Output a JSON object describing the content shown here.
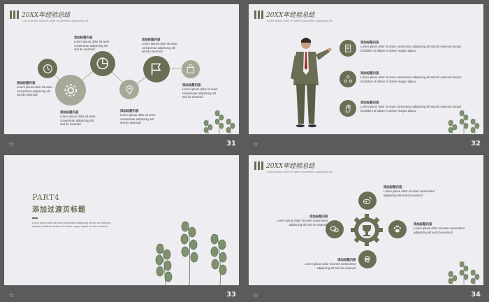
{
  "slides": [
    {
      "number": "31",
      "header": "20XX年经验总结",
      "header_sub": "Lorem ipsum dolor sit amet consectetur adipiscing elit",
      "nodes": [
        {
          "title": "添加标题内容",
          "lines": [
            "Lorem ipsum dolor sit amet",
            "consectetur adipiscing elit",
            "sed do eiusmod"
          ]
        },
        {
          "title": "添加标题内容",
          "lines": [
            "Lorem ipsum dolor sit amet",
            "consectetur adipiscing elit",
            "sed do eiusmod"
          ]
        },
        {
          "title": "添加标题内容",
          "lines": [
            "Lorem ipsum dolor sit amet",
            "consectetur adipiscing elit",
            "sed do eiusmod"
          ]
        },
        {
          "title": "添加标题内容",
          "lines": [
            "Lorem ipsum dolor sit amet",
            "consectetur adipiscing elit",
            "sed do eiusmod"
          ]
        },
        {
          "title": "添加标题内容",
          "lines": [
            "Lorem ipsum dolor sit amet",
            "consectetur adipiscing elit",
            "sed do eiusmod"
          ]
        },
        {
          "title": "添加标题内容",
          "lines": [
            "Lorem ipsum dolor sit amet",
            "consectetur adipiscing elit",
            "sed do eiusmod"
          ]
        }
      ],
      "icons": [
        "clock-icon",
        "gear-icon",
        "pie-chart-icon",
        "location-icon",
        "flag-icon",
        "bag-icon"
      ]
    },
    {
      "number": "32",
      "header": "20XX年经验总结",
      "header_sub": "Lorem ipsum dolor sit amet consectetur adipiscing elit",
      "items": [
        {
          "title": "添加标题内容",
          "lines": [
            "Lorem ipsum dolor sit amet consectetur adipiscing elit sed do eiusmod tempor",
            "incididunt ut labore et dolore magna aliqua"
          ]
        },
        {
          "title": "添加标题内容",
          "lines": [
            "Lorem ipsum dolor sit amet consectetur adipiscing elit sed do eiusmod tempor",
            "incididunt ut labore et dolore magna aliqua"
          ]
        },
        {
          "title": "添加标题内容",
          "lines": [
            "Lorem ipsum dolor sit amet consectetur adipiscing elit sed do eiusmod tempor",
            "incididunt ut labore et dolore magna aliqua"
          ]
        }
      ],
      "icons": [
        "document-icon",
        "network-icon",
        "hand-icon"
      ]
    },
    {
      "number": "33",
      "part": "PART4",
      "title": "添加过渡页标题",
      "desc": [
        "Lorem ipsum dolor sit amet consectetur adipiscing elit sed do eiusmod",
        "tempor incididunt ut labore et dolore magna aliqua ut enim ad minim"
      ]
    },
    {
      "number": "34",
      "header": "20XX年经验总结",
      "header_sub": "Lorem ipsum dolor sit amet consectetur adipiscing elit",
      "items": [
        {
          "title": "添加标题内容",
          "lines": [
            "Lorem ipsum dolor sit amet consectetur",
            "adipiscing elit sed do eiusmod"
          ]
        },
        {
          "title": "添加标题内容",
          "lines": [
            "Lorem ipsum dolor sit amet consectetur",
            "adipiscing elit sed do eiusmod"
          ]
        },
        {
          "title": "添加标题内容",
          "lines": [
            "Lorem ipsum dolor sit amet consectetur",
            "adipiscing elit sed do eiusmod"
          ]
        },
        {
          "title": "添加标题内容",
          "lines": [
            "Lorem ipsum dolor sit amet consectetur",
            "adipiscing elit sed do eiusmod"
          ]
        }
      ],
      "icons": [
        "weibo-icon",
        "wechat-icon",
        "trophy-gear-icon",
        "paw-icon",
        "ie-icon"
      ]
    }
  ],
  "colors": {
    "accent": "#6b6e54",
    "light": "#a7a898",
    "bg": "#eeedf1",
    "frame": "#5b5b5b"
  }
}
